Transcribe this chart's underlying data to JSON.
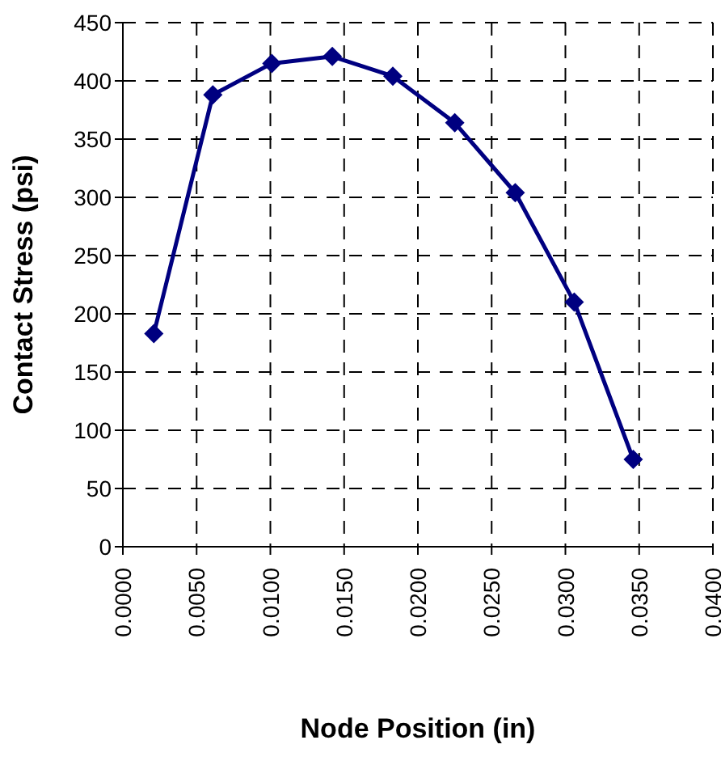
{
  "chart_data": {
    "type": "line",
    "xlabel": "Node Position (in)",
    "ylabel": "Contact Stress (psi)",
    "x": [
      0.0021,
      0.0061,
      0.0101,
      0.0142,
      0.0183,
      0.0225,
      0.0266,
      0.0306,
      0.0346
    ],
    "series": [
      {
        "color": "#000080",
        "values": [
          183,
          388,
          415,
          421,
          404,
          364,
          304,
          210,
          75
        ]
      }
    ],
    "xlim": [
      0,
      0.04
    ],
    "xticks": [
      {
        "value": 0,
        "label": "0.0000"
      },
      {
        "value": 0.005,
        "label": "0.0050"
      },
      {
        "value": 0.01,
        "label": "0.0100"
      },
      {
        "value": 0.015,
        "label": "0.0150"
      },
      {
        "value": 0.02,
        "label": "0.0200"
      },
      {
        "value": 0.025,
        "label": "0.0250"
      },
      {
        "value": 0.03,
        "label": "0.0300"
      },
      {
        "value": 0.035,
        "label": "0.0350"
      },
      {
        "value": 0.04,
        "label": "0.0400"
      }
    ],
    "ylim": [
      0,
      450
    ],
    "yticks": [
      0,
      50,
      100,
      150,
      200,
      250,
      300,
      350,
      400,
      450
    ],
    "grid": true,
    "legend": false,
    "marker": "diamond",
    "line_style": "solid"
  }
}
